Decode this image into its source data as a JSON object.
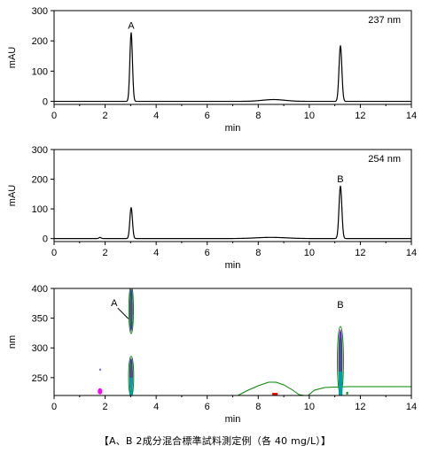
{
  "caption": "【A、B 2成分混合標準試料測定例（各 40 mg/L）】",
  "chart_data": [
    {
      "type": "line",
      "ylabel": "mAU",
      "xlabel": "min",
      "xlim": [
        0,
        14
      ],
      "ylim": [
        -10,
        300
      ],
      "xticks": [
        0,
        2,
        4,
        6,
        8,
        10,
        12,
        14
      ],
      "yticks": [
        0,
        100,
        200,
        300
      ],
      "wavelength_label": "237 nm",
      "peaks": [
        {
          "label": "A",
          "x": 3.02,
          "height": 228,
          "width": 0.05
        },
        {
          "label": "",
          "x": 8.6,
          "height": 6,
          "width": 0.45
        },
        {
          "label": "",
          "x": 11.22,
          "height": 185,
          "width": 0.055
        }
      ],
      "line_color": "#000000"
    },
    {
      "type": "line",
      "ylabel": "mAU",
      "xlabel": "min",
      "xlim": [
        0,
        14
      ],
      "ylim": [
        -10,
        300
      ],
      "xticks": [
        0,
        2,
        4,
        6,
        8,
        10,
        12,
        14
      ],
      "yticks": [
        0,
        100,
        200,
        300
      ],
      "wavelength_label": "254 nm",
      "peaks": [
        {
          "label": "",
          "x": 1.8,
          "height": 4,
          "width": 0.04
        },
        {
          "label": "",
          "x": 3.02,
          "height": 105,
          "width": 0.05
        },
        {
          "label": "",
          "x": 8.5,
          "height": 4,
          "width": 0.6
        },
        {
          "label": "B",
          "x": 11.22,
          "height": 178,
          "width": 0.055
        }
      ],
      "line_color": "#000000"
    },
    {
      "type": "heatmap",
      "ylabel": "nm",
      "xlabel": "min",
      "xlim": [
        0,
        14
      ],
      "ylim": [
        220,
        400
      ],
      "xticks": [
        0,
        2,
        4,
        6,
        8,
        10,
        12,
        14
      ],
      "yticks": [
        250,
        300,
        350,
        400
      ],
      "annotations": [
        {
          "label": "A",
          "x": 3.05
        },
        {
          "label": "B",
          "x": 11.22
        }
      ],
      "contour_colors": [
        "#00a0a0",
        "#ff00ff",
        "#3333cc",
        "#008800",
        "#ff0000"
      ]
    }
  ]
}
